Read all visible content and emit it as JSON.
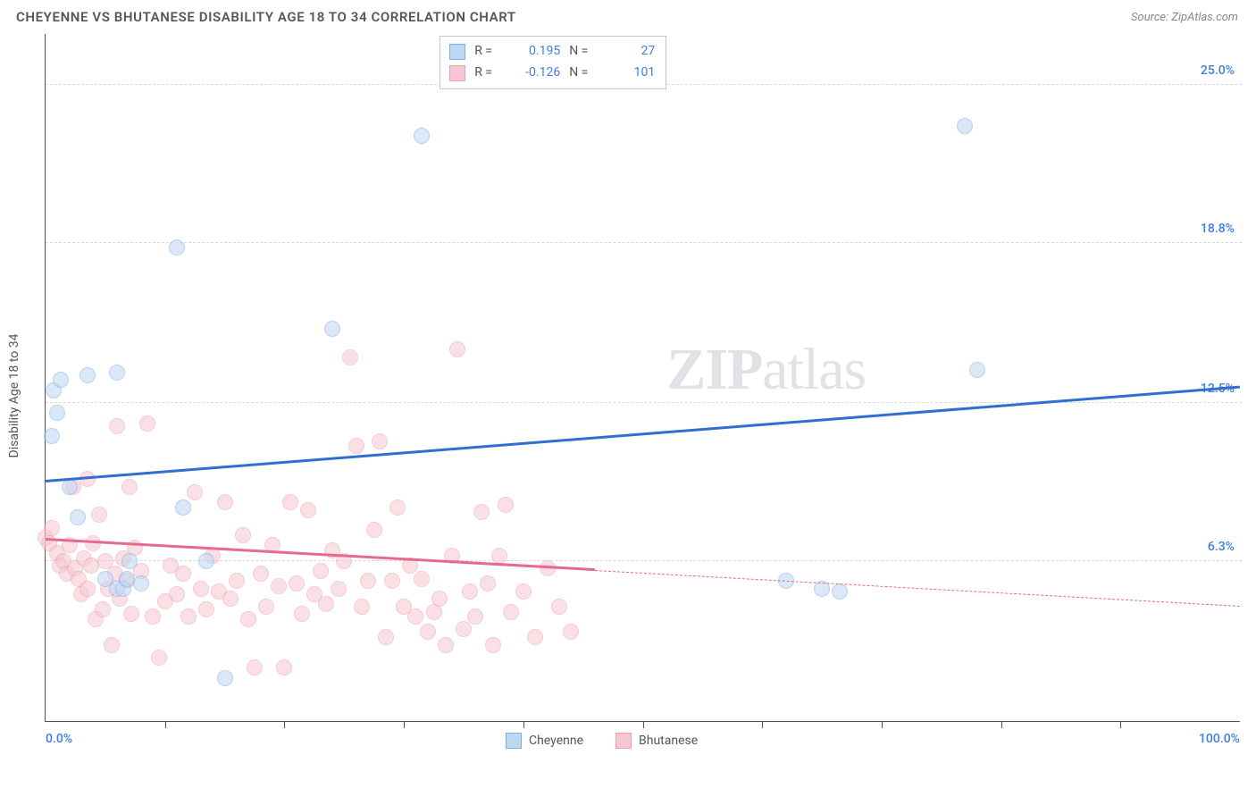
{
  "title": "CHEYENNE VS BHUTANESE DISABILITY AGE 18 TO 34 CORRELATION CHART",
  "source": "Source: ZipAtlas.com",
  "y_axis_label": "Disability Age 18 to 34",
  "watermark": {
    "bold": "ZIP",
    "rest": "atlas"
  },
  "colors": {
    "series_a_fill": "#bcd7f2",
    "series_a_stroke": "#7fb0e2",
    "series_a_line": "#2e6fd1",
    "series_a_text": "#3a7fe0",
    "series_b_fill": "#f6c7d1",
    "series_b_stroke": "#eea0b2",
    "series_b_line": "#e56a8c",
    "series_b_text": "#6b6b6b",
    "grid": "#d9d9d9",
    "axis": "#555555"
  },
  "chart": {
    "type": "scatter",
    "xlim": [
      0,
      100
    ],
    "ylim": [
      0,
      27
    ],
    "marker_radius": 9,
    "marker_opacity": 0.55,
    "y_ticks": [
      {
        "v": 25.0,
        "label": "25.0%"
      },
      {
        "v": 18.8,
        "label": "18.8%"
      },
      {
        "v": 12.5,
        "label": "12.5%"
      },
      {
        "v": 6.3,
        "label": "6.3%"
      }
    ],
    "x_ticks": [
      10,
      20,
      30,
      40,
      50,
      60,
      70,
      80,
      90
    ],
    "x_labels": [
      {
        "v": 0,
        "label": "0.0%",
        "align": "left"
      },
      {
        "v": 100,
        "label": "100.0%",
        "align": "right"
      }
    ],
    "series": [
      {
        "id": "cheyenne",
        "name": "Cheyenne",
        "r": "0.195",
        "n": "27",
        "trend": {
          "x0": 0,
          "y0": 9.4,
          "x1": 100,
          "y1": 13.1,
          "solid_until": 100
        },
        "points": [
          [
            0.5,
            11.2
          ],
          [
            0.7,
            13.0
          ],
          [
            1,
            12.1
          ],
          [
            1.3,
            13.4
          ],
          [
            3.5,
            13.6
          ],
          [
            6,
            13.7
          ],
          [
            2,
            9.2
          ],
          [
            2.7,
            8.0
          ],
          [
            11,
            18.6
          ],
          [
            11.5,
            8.4
          ],
          [
            5,
            5.6
          ],
          [
            6,
            5.2
          ],
          [
            6.5,
            5.2
          ],
          [
            6.8,
            5.6
          ],
          [
            7,
            6.3
          ],
          [
            8,
            5.4
          ],
          [
            13.5,
            6.3
          ],
          [
            15,
            1.7
          ],
          [
            24,
            15.4
          ],
          [
            31.5,
            23.0
          ],
          [
            62,
            5.5
          ],
          [
            65,
            5.2
          ],
          [
            66.5,
            5.1
          ],
          [
            77,
            23.4
          ],
          [
            78,
            13.8
          ]
        ]
      },
      {
        "id": "bhutanese",
        "name": "Bhutanese",
        "r": "-0.126",
        "n": "101",
        "trend": {
          "x0": 0,
          "y0": 7.1,
          "x1": 100,
          "y1": 4.5,
          "solid_until": 46
        },
        "points": [
          [
            0,
            7.2
          ],
          [
            0.3,
            7.0
          ],
          [
            0.5,
            7.6
          ],
          [
            1,
            6.6
          ],
          [
            1.2,
            6.1
          ],
          [
            1.5,
            6.3
          ],
          [
            1.8,
            5.8
          ],
          [
            2,
            6.9
          ],
          [
            2.3,
            9.2
          ],
          [
            2.5,
            6.0
          ],
          [
            2.8,
            5.6
          ],
          [
            3,
            5.0
          ],
          [
            3.2,
            6.4
          ],
          [
            3.5,
            5.2
          ],
          [
            3.5,
            9.5
          ],
          [
            3.8,
            6.1
          ],
          [
            4,
            7.0
          ],
          [
            4.2,
            4.0
          ],
          [
            4.5,
            8.1
          ],
          [
            4.8,
            4.4
          ],
          [
            5,
            6.3
          ],
          [
            5.2,
            5.2
          ],
          [
            5.5,
            3.0
          ],
          [
            5.8,
            5.8
          ],
          [
            6,
            11.6
          ],
          [
            6.2,
            4.8
          ],
          [
            6.5,
            6.4
          ],
          [
            6.8,
            5.5
          ],
          [
            7,
            9.2
          ],
          [
            7.2,
            4.2
          ],
          [
            7.5,
            6.8
          ],
          [
            8,
            5.9
          ],
          [
            8.5,
            11.7
          ],
          [
            9,
            4.1
          ],
          [
            9.5,
            2.5
          ],
          [
            10,
            4.7
          ],
          [
            10.5,
            6.1
          ],
          [
            11,
            5.0
          ],
          [
            11.5,
            5.8
          ],
          [
            12,
            4.1
          ],
          [
            12.5,
            9.0
          ],
          [
            13,
            5.2
          ],
          [
            13.5,
            4.4
          ],
          [
            14,
            6.5
          ],
          [
            14.5,
            5.1
          ],
          [
            15,
            8.6
          ],
          [
            15.5,
            4.8
          ],
          [
            16,
            5.5
          ],
          [
            16.5,
            7.3
          ],
          [
            17,
            4.0
          ],
          [
            17.5,
            2.1
          ],
          [
            18,
            5.8
          ],
          [
            18.5,
            4.5
          ],
          [
            19,
            6.9
          ],
          [
            19.5,
            5.3
          ],
          [
            20,
            2.1
          ],
          [
            20.5,
            8.6
          ],
          [
            21,
            5.4
          ],
          [
            21.5,
            4.2
          ],
          [
            22,
            8.3
          ],
          [
            22.5,
            5.0
          ],
          [
            23,
            5.9
          ],
          [
            23.5,
            4.6
          ],
          [
            24,
            6.7
          ],
          [
            24.5,
            5.2
          ],
          [
            25,
            6.3
          ],
          [
            25.5,
            14.3
          ],
          [
            26,
            10.8
          ],
          [
            26.5,
            4.5
          ],
          [
            27,
            5.5
          ],
          [
            27.5,
            7.5
          ],
          [
            28,
            11.0
          ],
          [
            28.5,
            3.3
          ],
          [
            29,
            5.5
          ],
          [
            29.5,
            8.4
          ],
          [
            30,
            4.5
          ],
          [
            30.5,
            6.1
          ],
          [
            31,
            4.1
          ],
          [
            31.5,
            5.6
          ],
          [
            32,
            3.5
          ],
          [
            32.5,
            4.3
          ],
          [
            33,
            4.8
          ],
          [
            33.5,
            3.0
          ],
          [
            34,
            6.5
          ],
          [
            34.5,
            14.6
          ],
          [
            35,
            3.6
          ],
          [
            35.5,
            5.1
          ],
          [
            36,
            4.1
          ],
          [
            36.5,
            8.2
          ],
          [
            37,
            5.4
          ],
          [
            37.5,
            3.0
          ],
          [
            38,
            6.5
          ],
          [
            38.5,
            8.5
          ],
          [
            39,
            4.3
          ],
          [
            40,
            5.1
          ],
          [
            41,
            3.3
          ],
          [
            42,
            6.0
          ],
          [
            43,
            4.5
          ],
          [
            44,
            3.5
          ]
        ]
      }
    ]
  },
  "legend_bottom": [
    {
      "series": "cheyenne",
      "label": "Cheyenne"
    },
    {
      "series": "bhutanese",
      "label": "Bhutanese"
    }
  ]
}
